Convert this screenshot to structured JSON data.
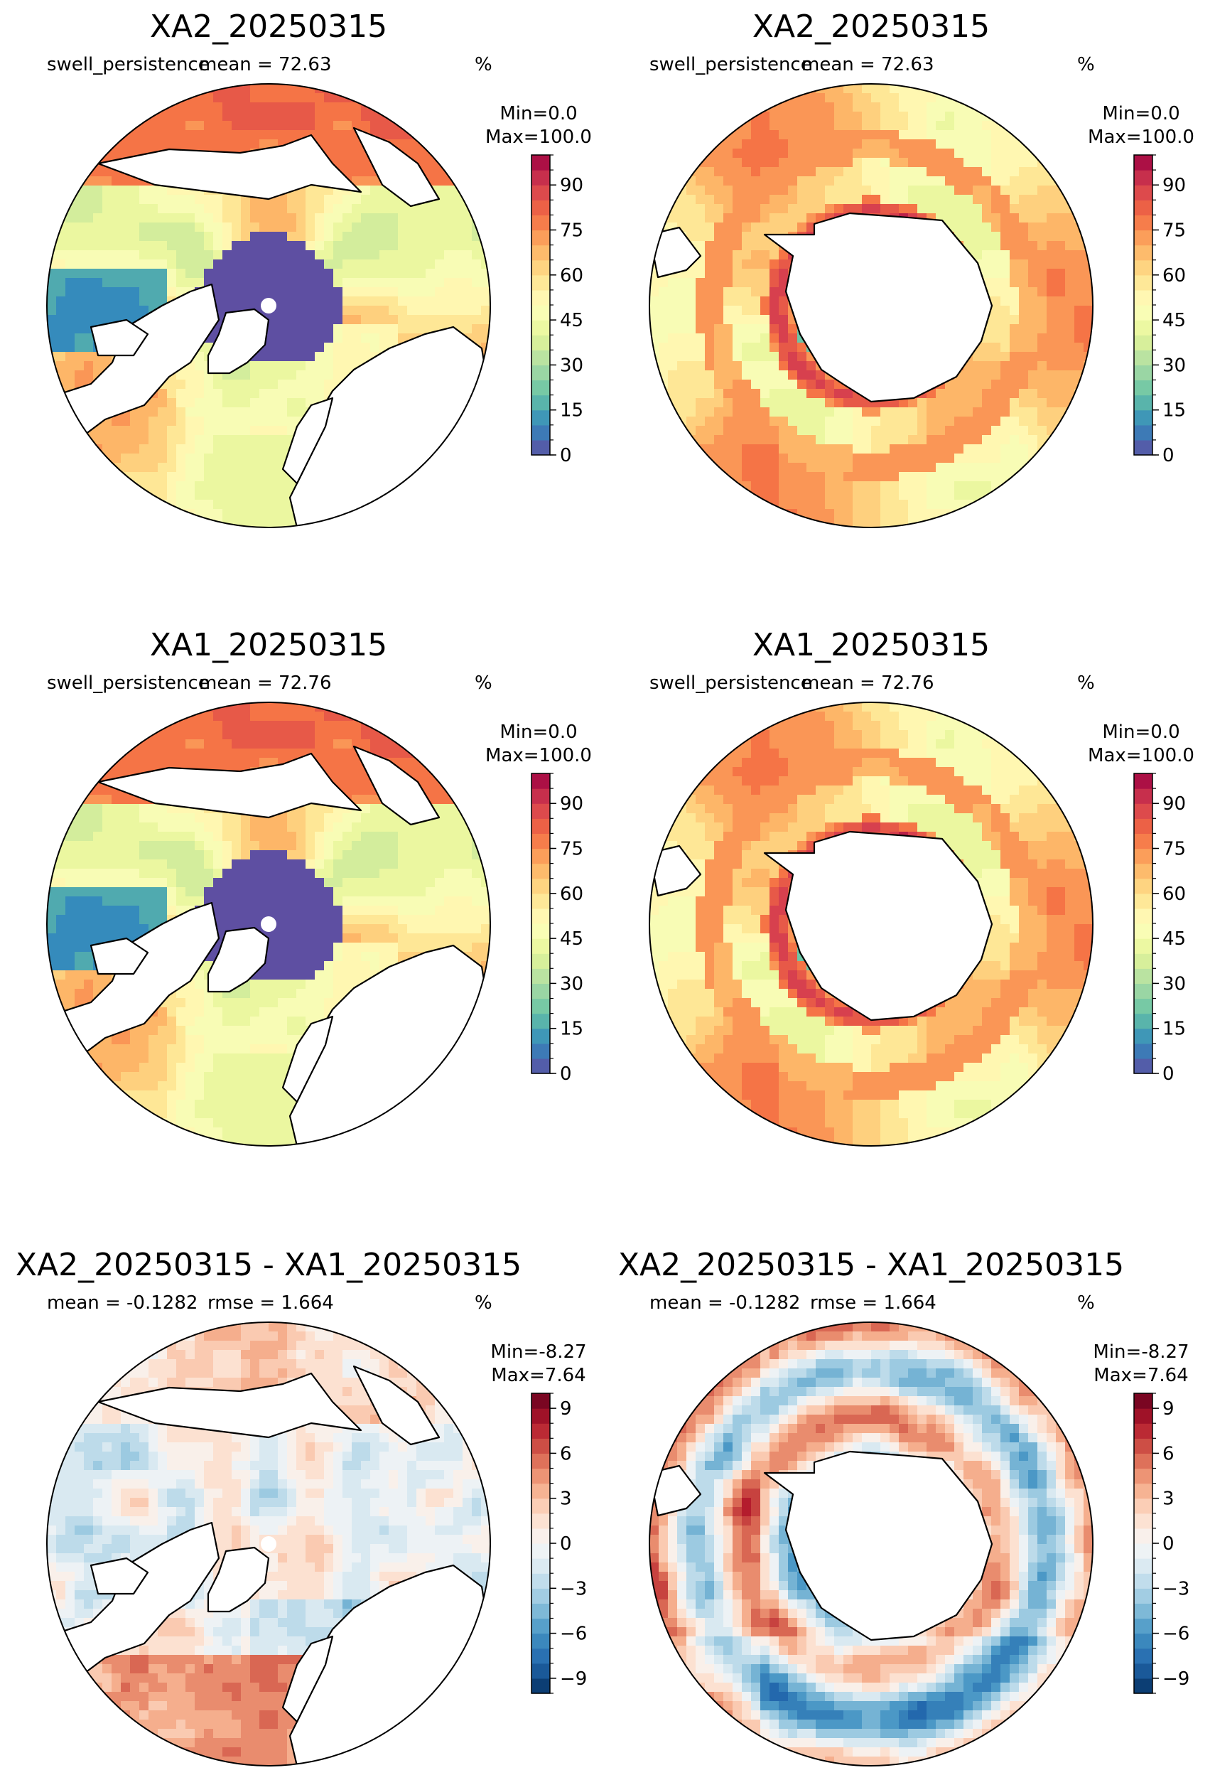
{
  "figure": {
    "panels": [
      {
        "id": "p1",
        "hemisphere": "north",
        "kind": "absolute",
        "title": "XA2_20250315",
        "left_text": "swell_persistence",
        "mid_text": "mean = 72.63",
        "unit": "%",
        "cb_min_label": "Min=0.0",
        "cb_max_label": "Max=100.0"
      },
      {
        "id": "p2",
        "hemisphere": "south",
        "kind": "absolute",
        "title": "XA2_20250315",
        "left_text": "swell_persistence",
        "mid_text": "mean = 72.63",
        "unit": "%",
        "cb_min_label": "Min=0.0",
        "cb_max_label": "Max=100.0"
      },
      {
        "id": "p3",
        "hemisphere": "north",
        "kind": "absolute",
        "title": "XA1_20250315",
        "left_text": "swell_persistence",
        "mid_text": "mean = 72.76",
        "unit": "%",
        "cb_min_label": "Min=0.0",
        "cb_max_label": "Max=100.0"
      },
      {
        "id": "p4",
        "hemisphere": "south",
        "kind": "absolute",
        "title": "XA1_20250315",
        "left_text": "swell_persistence",
        "mid_text": "mean = 72.76",
        "unit": "%",
        "cb_min_label": "Min=0.0",
        "cb_max_label": "Max=100.0"
      },
      {
        "id": "p5",
        "hemisphere": "north",
        "kind": "difference",
        "title": "XA2_20250315 - XA1_20250315",
        "left_text": "mean = -0.1282",
        "mid_text": "rmse = 1.664",
        "unit": "%",
        "cb_min_label": "Min=-8.27",
        "cb_max_label": "Max=7.64"
      },
      {
        "id": "p6",
        "hemisphere": "south",
        "kind": "difference",
        "title": "XA2_20250315 - XA1_20250315",
        "left_text": "mean = -0.1282",
        "mid_text": "rmse = 1.664",
        "unit": "%",
        "cb_min_label": "Min=-8.27",
        "cb_max_label": "Max=7.64"
      }
    ],
    "colorbars": {
      "absolute": {
        "colormap": "Spectral_r",
        "range": [
          0,
          100
        ],
        "tick_labels": [
          "0",
          "15",
          "30",
          "45",
          "60",
          "75",
          "90"
        ],
        "tick_values": [
          0,
          15,
          30,
          45,
          60,
          75,
          90
        ],
        "colors": [
          "#5e4fa2",
          "#3288bd",
          "#66c2a5",
          "#abdda4",
          "#e6f598",
          "#ffffbf",
          "#fee08b",
          "#fdae61",
          "#f46d43",
          "#d53e4f",
          "#9e0142"
        ]
      },
      "difference": {
        "colormap": "RdBu_r",
        "range": [
          -10,
          10
        ],
        "tick_labels": [
          "−9",
          "−6",
          "−3",
          "0",
          "3",
          "6",
          "9"
        ],
        "tick_values": [
          -9,
          -6,
          -3,
          0,
          3,
          6,
          9
        ],
        "colors": [
          "#053061",
          "#2166ac",
          "#4393c3",
          "#92c5de",
          "#d1e5f0",
          "#f7f7f7",
          "#fddbc7",
          "#f4a582",
          "#d6604d",
          "#b2182b",
          "#67001f"
        ]
      }
    }
  }
}
